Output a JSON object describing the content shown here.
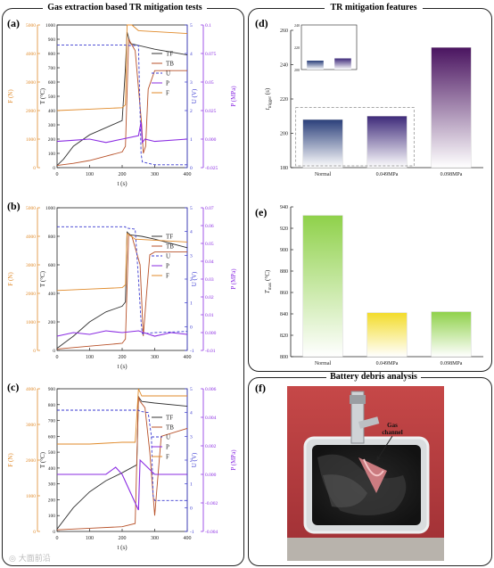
{
  "left_title": "Gas extraction based TR mitigation tests",
  "right_top_title": "TR mitigation features",
  "right_bottom_title": "Battery debris analysis",
  "panel_labels": {
    "a": "(a)",
    "b": "(b)",
    "c": "(c)",
    "d": "(d)",
    "e": "(e)",
    "f": "(f)"
  },
  "colors": {
    "F": "#e08a2a",
    "TF": "#333333",
    "TB": "#b8522a",
    "U": "#3a3ad0",
    "P": "#8a2be2",
    "P_axis": "#8a2be2"
  },
  "legend": [
    "TF",
    "TB",
    "U",
    "P",
    "F"
  ],
  "chart_data": [
    {
      "id": "a",
      "type": "line",
      "xlabel": "t (s)",
      "xlim": [
        0,
        400
      ],
      "xticks": [
        0,
        100,
        200,
        300,
        400
      ],
      "axes": {
        "F": {
          "label": "F (N)",
          "lim": [
            0,
            5000
          ],
          "ticks": [
            0,
            1000,
            2000,
            3000,
            4000,
            5000
          ]
        },
        "T": {
          "label": "T (°C)",
          "lim": [
            0,
            1000
          ],
          "ticks": [
            0,
            100,
            200,
            300,
            400,
            500,
            600,
            700,
            800,
            900,
            1000
          ]
        },
        "U": {
          "label": "U (V)",
          "lim": [
            0,
            5
          ],
          "ticks": [
            0,
            1,
            2,
            3,
            4,
            5
          ]
        },
        "P": {
          "label": "P (MPa)",
          "lim": [
            -0.025,
            0.1
          ],
          "ticks": [
            -0.025,
            0,
            0.025,
            0.05,
            0.075,
            0.1
          ]
        }
      },
      "series": [
        {
          "name": "TF",
          "axis": "T",
          "x": [
            0,
            20,
            50,
            100,
            150,
            200,
            210,
            215,
            225,
            300,
            400
          ],
          "y": [
            15,
            60,
            150,
            230,
            280,
            330,
            700,
            950,
            870,
            830,
            790
          ]
        },
        {
          "name": "TB",
          "axis": "T",
          "x": [
            0,
            50,
            100,
            150,
            200,
            210,
            220,
            240,
            260,
            265,
            272,
            280,
            300,
            400
          ],
          "y": [
            15,
            30,
            50,
            80,
            110,
            150,
            900,
            820,
            300,
            100,
            150,
            550,
            680,
            680
          ]
        },
        {
          "name": "U",
          "axis": "U",
          "x": [
            0,
            210,
            212,
            250,
            258,
            262,
            300,
            400
          ],
          "y": [
            4.3,
            4.3,
            4.28,
            4.28,
            0.5,
            0.2,
            0.1,
            0.1
          ]
        },
        {
          "name": "P",
          "axis": "P",
          "x": [
            0,
            50,
            100,
            150,
            200,
            250,
            258,
            262,
            270,
            300,
            400
          ],
          "y": [
            -0.002,
            -0.001,
            0.0,
            -0.003,
            0.0,
            0.003,
            0.015,
            -0.003,
            0.0,
            -0.002,
            0.0
          ]
        },
        {
          "name": "F",
          "axis": "F",
          "x": [
            0,
            100,
            200,
            210,
            215,
            230,
            250,
            400
          ],
          "y": [
            2000,
            2050,
            2100,
            2200,
            5200,
            5000,
            4800,
            4700
          ]
        }
      ]
    },
    {
      "id": "b",
      "type": "line",
      "xlabel": "t (s)",
      "xlim": [
        0,
        400
      ],
      "xticks": [
        0,
        100,
        200,
        300,
        400
      ],
      "axes": {
        "F": {
          "label": "F (N)",
          "lim": [
            0,
            5000
          ],
          "ticks": [
            0,
            1000,
            2000,
            3000,
            4000,
            5000
          ]
        },
        "T": {
          "label": "T (°C)",
          "lim": [
            0,
            1000
          ],
          "ticks": [
            0,
            200,
            400,
            600,
            800,
            1000
          ]
        },
        "U": {
          "label": "U (V)",
          "lim": [
            -1,
            5
          ],
          "ticks": [
            -1,
            0,
            1,
            2,
            3,
            4,
            5
          ]
        },
        "P": {
          "label": "P (MPa)",
          "lim": [
            -0.01,
            0.07
          ],
          "ticks": [
            -0.01,
            0,
            0.01,
            0.02,
            0.03,
            0.04,
            0.05,
            0.06,
            0.07
          ]
        }
      },
      "series": [
        {
          "name": "TF",
          "axis": "T",
          "x": [
            0,
            50,
            100,
            150,
            200,
            210,
            215,
            225,
            260,
            300,
            400
          ],
          "y": [
            15,
            100,
            200,
            270,
            310,
            340,
            830,
            810,
            800,
            780,
            720
          ]
        },
        {
          "name": "TB",
          "axis": "T",
          "x": [
            0,
            100,
            200,
            210,
            220,
            230,
            255,
            265,
            275,
            285,
            300,
            400
          ],
          "y": [
            10,
            30,
            50,
            80,
            810,
            800,
            600,
            100,
            400,
            670,
            690,
            690
          ]
        },
        {
          "name": "U",
          "axis": "U",
          "x": [
            0,
            210,
            212,
            240,
            250,
            258,
            262,
            300,
            400
          ],
          "y": [
            4.2,
            4.2,
            4.15,
            4.1,
            2.0,
            0.2,
            -0.3,
            -0.25,
            -0.2
          ]
        },
        {
          "name": "P",
          "axis": "P",
          "x": [
            0,
            50,
            100,
            150,
            200,
            250,
            300,
            350,
            400
          ],
          "y": [
            -0.002,
            0.0,
            -0.001,
            0.001,
            0.0,
            0.001,
            -0.002,
            0.0,
            -0.001
          ]
        },
        {
          "name": "F",
          "axis": "F",
          "x": [
            0,
            100,
            200,
            210,
            215,
            240,
            400
          ],
          "y": [
            2100,
            2150,
            2200,
            2300,
            4100,
            3900,
            3800
          ]
        }
      ]
    },
    {
      "id": "c",
      "type": "line",
      "xlabel": "t (s)",
      "xlim": [
        0,
        400
      ],
      "xticks": [
        0,
        100,
        200,
        300,
        400
      ],
      "axes": {
        "F": {
          "label": "F (N)",
          "lim": [
            0,
            4000
          ],
          "ticks": [
            0,
            1000,
            2000,
            3000,
            4000
          ]
        },
        "T": {
          "label": "T (°C)",
          "lim": [
            0,
            900
          ],
          "ticks": [
            0,
            100,
            200,
            300,
            400,
            500,
            600,
            700,
            800,
            900
          ]
        },
        "U": {
          "label": "U (V)",
          "lim": [
            -1,
            5
          ],
          "ticks": [
            -1,
            0,
            1,
            2,
            3,
            4,
            5
          ]
        },
        "P": {
          "label": "P (MPa)",
          "lim": [
            -0.004,
            0.006
          ],
          "ticks": [
            -0.004,
            -0.002,
            0,
            0.002,
            0.004,
            0.006
          ]
        }
      },
      "series": [
        {
          "name": "TF",
          "axis": "T",
          "x": [
            0,
            50,
            100,
            150,
            200,
            245,
            250,
            260,
            300,
            400
          ],
          "y": [
            15,
            150,
            250,
            320,
            370,
            420,
            850,
            820,
            810,
            790
          ]
        },
        {
          "name": "TB",
          "axis": "T",
          "x": [
            0,
            100,
            200,
            240,
            250,
            255,
            270,
            285,
            300,
            320,
            400
          ],
          "y": [
            10,
            20,
            30,
            50,
            850,
            820,
            780,
            500,
            100,
            600,
            650
          ]
        },
        {
          "name": "U",
          "axis": "U",
          "x": [
            0,
            250,
            255,
            280,
            290,
            295,
            300,
            400
          ],
          "y": [
            4.1,
            4.1,
            4.05,
            4.0,
            3.0,
            0.5,
            0.3,
            0.3
          ]
        },
        {
          "name": "P",
          "axis": "P",
          "x": [
            0,
            50,
            100,
            150,
            180,
            200,
            220,
            240,
            250,
            255,
            300,
            400
          ],
          "y": [
            0.0,
            0.0,
            0.0,
            0.0,
            0.0005,
            0.0,
            -0.001,
            -0.002,
            -0.0025,
            0.001,
            0.0,
            0.0
          ]
        },
        {
          "name": "F",
          "axis": "F",
          "x": [
            0,
            100,
            200,
            240,
            250,
            260,
            400
          ],
          "y": [
            2450,
            2450,
            2500,
            2500,
            4100,
            3800,
            3800
          ]
        }
      ]
    },
    {
      "id": "d",
      "type": "bar",
      "ylabel": "t_trigger (s)",
      "ylim": [
        180,
        260
      ],
      "yticks": [
        180,
        200,
        220,
        240,
        260
      ],
      "categories": [
        "Normal",
        "0.049MPa",
        "0.098MPa"
      ],
      "values": [
        208,
        210,
        250
      ],
      "colors": [
        "#2a3f7a",
        "#3e2a7a",
        "#4a1460"
      ],
      "inset": {
        "ylim": [
          200,
          240
        ],
        "yticks": [
          200,
          220,
          240
        ],
        "values": [
          208,
          210
        ]
      }
    },
    {
      "id": "e",
      "type": "bar",
      "ylabel": "T_max (°C)",
      "ylim": [
        800,
        940
      ],
      "yticks": [
        800,
        820,
        840,
        860,
        880,
        900,
        920,
        940
      ],
      "categories": [
        "Normal",
        "0.049MPa",
        "0.098MPa"
      ],
      "values": [
        932,
        841,
        842
      ],
      "colors": [
        "#8fd14a",
        "#f3dc2a",
        "#8fd14a"
      ]
    }
  ],
  "photo": {
    "annotation": "Gas channel",
    "watermark": "大面前沿"
  }
}
